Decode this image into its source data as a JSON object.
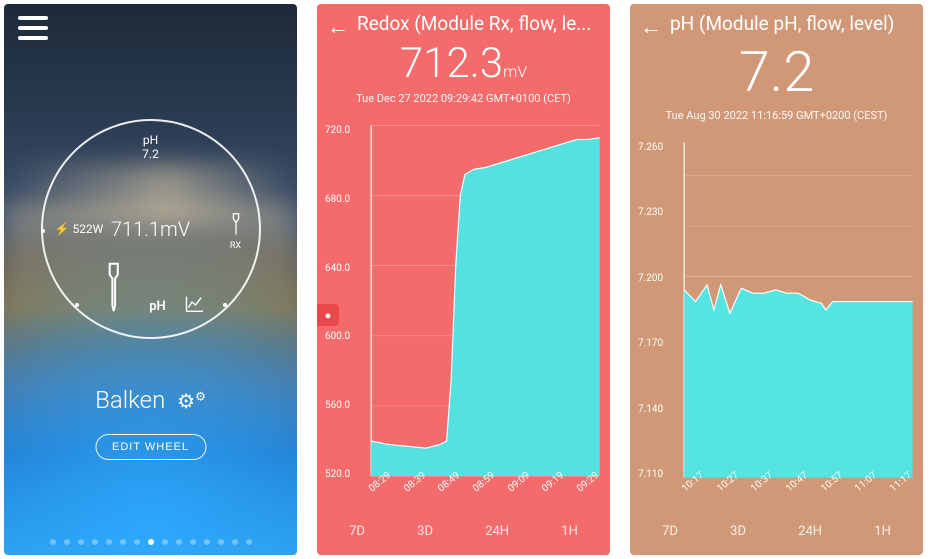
{
  "screen1": {
    "hamburger_name": "menu",
    "wheel": {
      "center": "711.1mV",
      "top_line1": "pH",
      "top_line2": "7.2",
      "left_icon": "power-plug-icon",
      "left_value": "522W",
      "right_label": "RX",
      "bottom_label": "pH",
      "chart_icon": "chart-icon"
    },
    "device_name": "Balken",
    "settings_icon": "⚙⚙",
    "edit_wheel": "EDIT WHEEL",
    "page_count": 15,
    "active_page": 7
  },
  "screen2": {
    "type": "area",
    "background_color": "#f36b6b",
    "fill_color": "#4de8e8",
    "line_color": "#ffffff",
    "grid_color": "rgba(255,255,255,.35)",
    "title": "Redox (Module Rx, flow, le...",
    "value": "712.3",
    "unit": "mV",
    "timestamp": "Tue Dec 27 2022 09:29:42 GMT+0100 (CET)",
    "ylim": [
      520,
      720
    ],
    "yticks": [
      "720.0",
      "680.0",
      "640.0",
      "600.0",
      "560.0",
      "520.0"
    ],
    "xticks": [
      "08:29",
      "08:39",
      "08:49",
      "08:59",
      "09:09",
      "09:19",
      "09:29"
    ],
    "series": [
      [
        0,
        540
      ],
      [
        0.08,
        538
      ],
      [
        0.16,
        537
      ],
      [
        0.24,
        536
      ],
      [
        0.3,
        538
      ],
      [
        0.33,
        540
      ],
      [
        0.35,
        575
      ],
      [
        0.37,
        640
      ],
      [
        0.39,
        680
      ],
      [
        0.41,
        692
      ],
      [
        0.45,
        695
      ],
      [
        0.5,
        696
      ],
      [
        0.55,
        698
      ],
      [
        0.6,
        700
      ],
      [
        0.65,
        702
      ],
      [
        0.7,
        704
      ],
      [
        0.75,
        706
      ],
      [
        0.8,
        708
      ],
      [
        0.85,
        710
      ],
      [
        0.9,
        712
      ],
      [
        0.95,
        712
      ],
      [
        1,
        713
      ]
    ],
    "ranges": [
      "7D",
      "3D",
      "24H",
      "1H"
    ]
  },
  "screen3": {
    "type": "area",
    "background_color": "#d09876",
    "fill_color": "#4de8e8",
    "line_color": "#ffffff",
    "grid_color": "rgba(255,255,255,.35)",
    "title": "pH (Module pH, flow, level)",
    "value": "7.2",
    "unit": "",
    "timestamp": "Tue Aug 30 2022 11:16:59 GMT+0200 (CEST)",
    "ylim": [
      7.08,
      7.28
    ],
    "yticks": [
      "7.260",
      "7.230",
      "7.200",
      "7.170",
      "7.140",
      "7.110"
    ],
    "xticks": [
      "10:17",
      "10:27",
      "10:37",
      "10:47",
      "10:57",
      "11:07",
      "11:17"
    ],
    "series": [
      [
        0,
        7.192
      ],
      [
        0.05,
        7.185
      ],
      [
        0.1,
        7.195
      ],
      [
        0.13,
        7.18
      ],
      [
        0.16,
        7.195
      ],
      [
        0.2,
        7.178
      ],
      [
        0.25,
        7.193
      ],
      [
        0.3,
        7.19
      ],
      [
        0.35,
        7.19
      ],
      [
        0.4,
        7.192
      ],
      [
        0.45,
        7.19
      ],
      [
        0.5,
        7.19
      ],
      [
        0.55,
        7.186
      ],
      [
        0.6,
        7.184
      ],
      [
        0.62,
        7.18
      ],
      [
        0.65,
        7.185
      ],
      [
        1,
        7.185
      ]
    ],
    "ranges": [
      "7D",
      "3D",
      "24H",
      "1H"
    ]
  }
}
